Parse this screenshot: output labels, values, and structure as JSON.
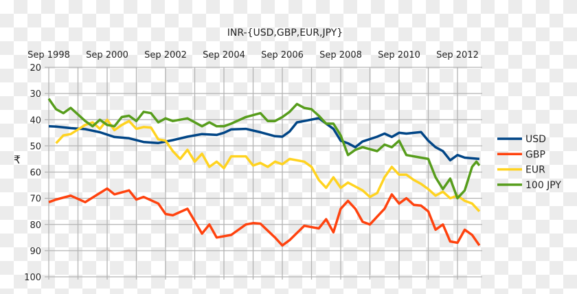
{
  "chart_data": {
    "type": "line",
    "title": "INR-{USD,GBP,EUR,JPY}",
    "ylabel": "₹",
    "xlabel": "",
    "ylim": [
      20,
      100
    ],
    "y_inverted": true,
    "xlim": [
      1998.75,
      2013.5
    ],
    "yticks": [
      20,
      30,
      40,
      50,
      60,
      70,
      80,
      90,
      100
    ],
    "xticks": [
      {
        "x": 1998.75,
        "label": "Sep 1998"
      },
      {
        "x": 2000.75,
        "label": "Sep 2000"
      },
      {
        "x": 2002.75,
        "label": "Sep 2002"
      },
      {
        "x": 2004.75,
        "label": "Sep 2004"
      },
      {
        "x": 2006.75,
        "label": "Sep 2006"
      },
      {
        "x": 2008.75,
        "label": "Sep 2008"
      },
      {
        "x": 2010.75,
        "label": "Sep 2010"
      },
      {
        "x": 2012.75,
        "label": "Sep 2012"
      }
    ],
    "grid": true,
    "legend_position": "right",
    "series": [
      {
        "name": "USD",
        "color": "#004586",
        "points": [
          [
            1998.75,
            42.5
          ],
          [
            1999,
            42.6
          ],
          [
            1999.5,
            43.2
          ],
          [
            2000,
            43.6
          ],
          [
            2000.5,
            44.8
          ],
          [
            2001,
            46.6
          ],
          [
            2001.5,
            47.1
          ],
          [
            2002,
            48.5
          ],
          [
            2002.5,
            48.9
          ],
          [
            2003,
            47.8
          ],
          [
            2003.5,
            46.5
          ],
          [
            2004,
            45.5
          ],
          [
            2004.5,
            45.8
          ],
          [
            2004.75,
            45
          ],
          [
            2005,
            43.7
          ],
          [
            2005.5,
            43.5
          ],
          [
            2006,
            44.8
          ],
          [
            2006.5,
            46.3
          ],
          [
            2006.75,
            46.5
          ],
          [
            2007,
            44.5
          ],
          [
            2007.25,
            41
          ],
          [
            2007.5,
            40.5
          ],
          [
            2008,
            39.4
          ],
          [
            2008.25,
            41.5
          ],
          [
            2008.5,
            43.5
          ],
          [
            2008.75,
            48
          ],
          [
            2009,
            49
          ],
          [
            2009.25,
            50.5
          ],
          [
            2009.5,
            48.3
          ],
          [
            2010,
            46.5
          ],
          [
            2010.25,
            45.3
          ],
          [
            2010.5,
            46.6
          ],
          [
            2010.75,
            45
          ],
          [
            2011,
            45.3
          ],
          [
            2011.5,
            44.7
          ],
          [
            2011.75,
            48
          ],
          [
            2012,
            50.5
          ],
          [
            2012.25,
            52
          ],
          [
            2012.5,
            55.5
          ],
          [
            2012.75,
            53.5
          ],
          [
            2013,
            54.5
          ],
          [
            2013.5,
            55
          ]
        ]
      },
      {
        "name": "GBP",
        "color": "#ff420e",
        "points": [
          [
            1998.75,
            71.5
          ],
          [
            1999,
            70.5
          ],
          [
            1999.5,
            69
          ],
          [
            2000,
            71.5
          ],
          [
            2000.5,
            68
          ],
          [
            2000.75,
            66.3
          ],
          [
            2001,
            68.5
          ],
          [
            2001.5,
            67
          ],
          [
            2001.75,
            70.5
          ],
          [
            2002,
            69.5
          ],
          [
            2002.5,
            72
          ],
          [
            2002.75,
            76
          ],
          [
            2003,
            76.5
          ],
          [
            2003.5,
            74
          ],
          [
            2004,
            83.5
          ],
          [
            2004.25,
            80
          ],
          [
            2004.5,
            85
          ],
          [
            2005,
            84
          ],
          [
            2005.5,
            80
          ],
          [
            2005.75,
            79.5
          ],
          [
            2006,
            79.7
          ],
          [
            2006.5,
            85
          ],
          [
            2006.75,
            88
          ],
          [
            2007,
            86
          ],
          [
            2007.5,
            80.5
          ],
          [
            2008,
            81.5
          ],
          [
            2008.25,
            78
          ],
          [
            2008.5,
            83
          ],
          [
            2008.75,
            74
          ],
          [
            2009,
            71
          ],
          [
            2009.25,
            74
          ],
          [
            2009.5,
            79
          ],
          [
            2009.75,
            80
          ],
          [
            2010,
            77
          ],
          [
            2010.25,
            74
          ],
          [
            2010.5,
            68.5
          ],
          [
            2010.75,
            72
          ],
          [
            2011,
            70
          ],
          [
            2011.25,
            72.5
          ],
          [
            2011.5,
            72.8
          ],
          [
            2011.75,
            75
          ],
          [
            2012,
            82
          ],
          [
            2012.25,
            80
          ],
          [
            2012.5,
            86.5
          ],
          [
            2012.75,
            87
          ],
          [
            2013,
            82
          ],
          [
            2013.25,
            84
          ],
          [
            2013.5,
            88
          ]
        ]
      },
      {
        "name": "EUR",
        "color": "#ffd320",
        "points": [
          [
            1999,
            49
          ],
          [
            1999.25,
            46
          ],
          [
            1999.5,
            45.5
          ],
          [
            2000,
            42
          ],
          [
            2000.25,
            41
          ],
          [
            2000.5,
            43.5
          ],
          [
            2000.75,
            40
          ],
          [
            2001,
            44
          ],
          [
            2001.25,
            42
          ],
          [
            2001.5,
            40.5
          ],
          [
            2001.75,
            43.5
          ],
          [
            2002,
            42.8
          ],
          [
            2002.25,
            43
          ],
          [
            2002.5,
            47.5
          ],
          [
            2002.75,
            48
          ],
          [
            2003,
            52
          ],
          [
            2003.25,
            55
          ],
          [
            2003.5,
            51.5
          ],
          [
            2003.75,
            56
          ],
          [
            2004,
            53
          ],
          [
            2004.25,
            58
          ],
          [
            2004.5,
            56
          ],
          [
            2004.75,
            58.5
          ],
          [
            2005,
            54
          ],
          [
            2005.5,
            54
          ],
          [
            2005.75,
            57.5
          ],
          [
            2006,
            56.5
          ],
          [
            2006.25,
            58
          ],
          [
            2006.5,
            56
          ],
          [
            2006.75,
            57
          ],
          [
            2007,
            55
          ],
          [
            2007.5,
            56
          ],
          [
            2007.75,
            58
          ],
          [
            2008,
            63
          ],
          [
            2008.25,
            66
          ],
          [
            2008.5,
            62
          ],
          [
            2008.75,
            66
          ],
          [
            2009,
            64
          ],
          [
            2009.5,
            67
          ],
          [
            2009.75,
            69.5
          ],
          [
            2010,
            68
          ],
          [
            2010.25,
            62
          ],
          [
            2010.5,
            58
          ],
          [
            2010.75,
            61
          ],
          [
            2011,
            61
          ],
          [
            2011.25,
            63
          ],
          [
            2011.5,
            64.5
          ],
          [
            2011.75,
            66.5
          ],
          [
            2012,
            69
          ],
          [
            2012.25,
            67.5
          ],
          [
            2012.5,
            70
          ],
          [
            2012.75,
            69
          ],
          [
            2013,
            71
          ],
          [
            2013.25,
            72
          ],
          [
            2013.5,
            75
          ]
        ]
      },
      {
        "name": "100 JPY",
        "color": "#579d1c",
        "points": [
          [
            1998.75,
            32
          ],
          [
            1999,
            36
          ],
          [
            1999.25,
            37.5
          ],
          [
            1999.5,
            35.5
          ],
          [
            2000,
            40.5
          ],
          [
            2000.25,
            42.5
          ],
          [
            2000.5,
            40
          ],
          [
            2000.75,
            42
          ],
          [
            2001,
            42.5
          ],
          [
            2001.25,
            39
          ],
          [
            2001.5,
            38.5
          ],
          [
            2001.75,
            40.5
          ],
          [
            2002,
            37
          ],
          [
            2002.25,
            37.5
          ],
          [
            2002.5,
            41
          ],
          [
            2002.75,
            39.5
          ],
          [
            2003,
            40.5
          ],
          [
            2003.5,
            39.5
          ],
          [
            2004,
            42.5
          ],
          [
            2004.25,
            41
          ],
          [
            2004.5,
            42.5
          ],
          [
            2004.75,
            42.5
          ],
          [
            2005,
            41.5
          ],
          [
            2005.5,
            39
          ],
          [
            2006,
            37.5
          ],
          [
            2006.25,
            40.5
          ],
          [
            2006.5,
            40.5
          ],
          [
            2006.75,
            39
          ],
          [
            2007,
            37
          ],
          [
            2007.25,
            34
          ],
          [
            2007.5,
            35.5
          ],
          [
            2007.75,
            36
          ],
          [
            2008,
            38.5
          ],
          [
            2008.25,
            41.5
          ],
          [
            2008.5,
            41.5
          ],
          [
            2008.75,
            46
          ],
          [
            2009,
            53.5
          ],
          [
            2009.25,
            51.5
          ],
          [
            2009.5,
            50.5
          ],
          [
            2010,
            52
          ],
          [
            2010.25,
            49.5
          ],
          [
            2010.5,
            50.5
          ],
          [
            2010.75,
            48
          ],
          [
            2011,
            53.5
          ],
          [
            2011.5,
            54.5
          ],
          [
            2011.75,
            55
          ],
          [
            2012,
            62
          ],
          [
            2012.25,
            66.5
          ],
          [
            2012.5,
            62.5
          ],
          [
            2012.75,
            70
          ],
          [
            2013,
            67
          ],
          [
            2013.25,
            58
          ],
          [
            2013.4,
            56
          ],
          [
            2013.5,
            57.5
          ]
        ]
      }
    ]
  }
}
